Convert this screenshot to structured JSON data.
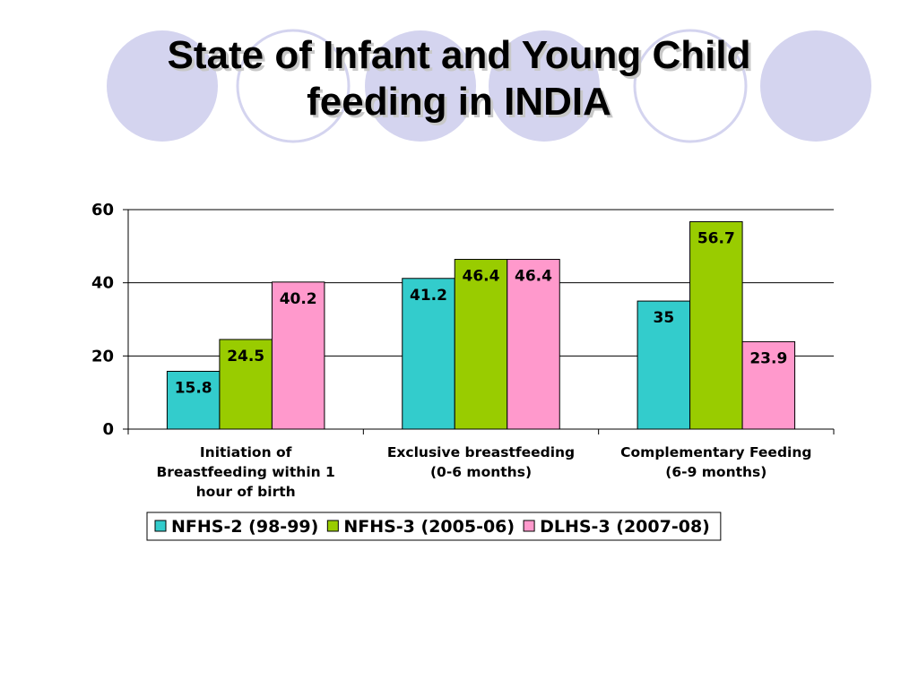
{
  "slide": {
    "title_lines": [
      "State of Infant and Young Child",
      "feeding in INDIA"
    ],
    "decor_fill": "#d4d4ef",
    "decor_ring": "#d4d4ef"
  },
  "chart_data": {
    "type": "bar",
    "categories": [
      [
        "Initiation of",
        "Breastfeeding within 1",
        "hour of birth"
      ],
      [
        "Exclusive breastfeeding",
        "(0-6 months)"
      ],
      [
        "Complementary Feeding",
        "(6-9 months)"
      ]
    ],
    "series": [
      {
        "name": "NFHS-2 (98-99)",
        "color": "#33cccc",
        "values": [
          15.8,
          41.2,
          35
        ],
        "labels": [
          "15.8",
          "41.2",
          "35"
        ]
      },
      {
        "name": "NFHS-3 (2005-06)",
        "color": "#99cc00",
        "values": [
          24.5,
          46.4,
          56.7
        ],
        "labels": [
          "24.5",
          "46.4",
          "56.7"
        ]
      },
      {
        "name": "DLHS-3 (2007-08)",
        "color": "#ff99cc",
        "values": [
          40.2,
          46.4,
          23.9
        ],
        "labels": [
          "40.2",
          "46.4",
          "23.9"
        ]
      }
    ],
    "yticks": [
      "0",
      "20",
      "40",
      "60"
    ],
    "ylim": [
      0,
      60
    ],
    "grid": true,
    "legend": "bottom"
  }
}
